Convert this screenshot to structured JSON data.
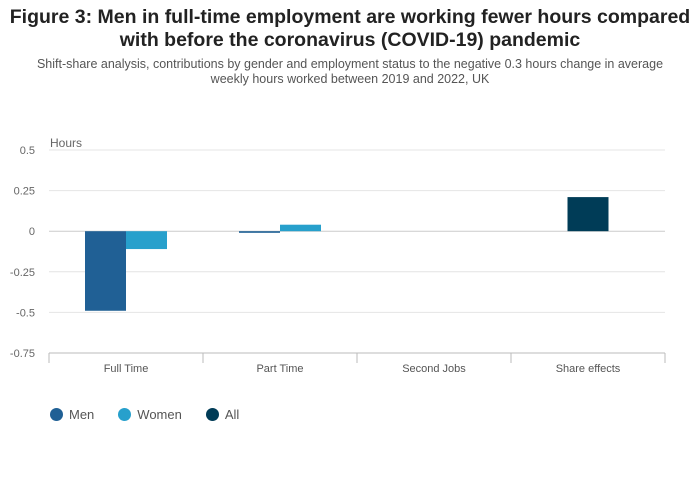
{
  "title_line1": "Figure 3: Men in full-time employment are working fewer hours compared",
  "title_line2": "with before the coronavirus (COVID-19) pandemic",
  "subtitle_line1": "Shift-share analysis, contributions by gender and employment status to the negative 0.3 hours change in average",
  "subtitle_line2": "weekly hours worked between 2019 and 2022, UK",
  "chart_data": {
    "type": "bar",
    "title": "Figure 3: Men in full-time employment are working fewer hours compared with before the coronavirus (COVID-19) pandemic",
    "subtitle": "Shift-share analysis, contributions by gender and employment status to the negative 0.3 hours change in average weekly hours worked between 2019 and 2022, UK",
    "ylabel": "Hours",
    "xlabel": "",
    "categories": [
      "Full Time",
      "Part Time",
      "Second Jobs",
      "Share effects"
    ],
    "series": [
      {
        "name": "Men",
        "color": "#206095",
        "values": [
          -0.49,
          -0.01,
          0,
          null
        ]
      },
      {
        "name": "Women",
        "color": "#27a0cc",
        "values": [
          -0.11,
          0.04,
          0,
          null
        ]
      },
      {
        "name": "All",
        "color": "#003c57",
        "values": [
          null,
          null,
          null,
          0.21
        ]
      }
    ],
    "ylim": [
      -0.75,
      0.5
    ],
    "yticks": [
      0.5,
      0.25,
      0,
      -0.25,
      -0.5,
      -0.75
    ],
    "ytick_labels": [
      "0.5",
      "0.25",
      "0",
      "-0.25",
      "-0.5",
      "-0.75"
    ],
    "grid": true,
    "legend_position": "bottom-left"
  }
}
